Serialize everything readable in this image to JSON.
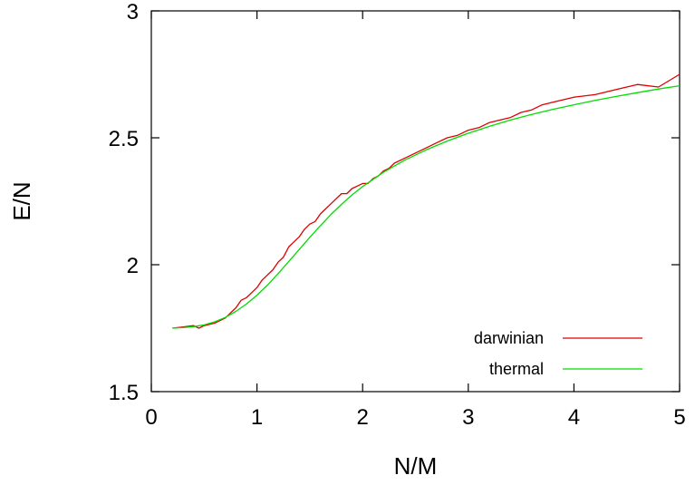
{
  "chart_data": {
    "type": "line",
    "title": "",
    "xlabel": "N/M",
    "ylabel": "E/N",
    "xlim": [
      0,
      5
    ],
    "ylim": [
      1.5,
      3
    ],
    "xticks": [
      0,
      1,
      2,
      3,
      4,
      5
    ],
    "xtick_labels": [
      "0",
      "1",
      "2",
      "3",
      "4",
      "5"
    ],
    "yticks": [
      1.5,
      2,
      2.5,
      3
    ],
    "ytick_labels": [
      "1.5",
      "2",
      "2.5",
      "3"
    ],
    "grid": false,
    "legend_position": "bottom-right",
    "series": [
      {
        "name": "darwinian",
        "color": "#dd0000",
        "x": [
          0.2,
          0.3,
          0.4,
          0.45,
          0.5,
          0.6,
          0.7,
          0.75,
          0.8,
          0.85,
          0.9,
          0.95,
          1.0,
          1.05,
          1.1,
          1.15,
          1.2,
          1.25,
          1.3,
          1.35,
          1.4,
          1.45,
          1.5,
          1.55,
          1.6,
          1.65,
          1.7,
          1.75,
          1.8,
          1.85,
          1.9,
          1.95,
          2.0,
          2.05,
          2.1,
          2.15,
          2.2,
          2.25,
          2.3,
          2.4,
          2.5,
          2.6,
          2.7,
          2.8,
          2.9,
          3.0,
          3.1,
          3.2,
          3.3,
          3.4,
          3.5,
          3.6,
          3.7,
          3.8,
          3.9,
          4.0,
          4.2,
          4.4,
          4.6,
          4.8,
          5.0
        ],
        "y": [
          1.75,
          1.755,
          1.76,
          1.75,
          1.76,
          1.77,
          1.79,
          1.81,
          1.83,
          1.86,
          1.87,
          1.89,
          1.91,
          1.94,
          1.96,
          1.98,
          2.01,
          2.03,
          2.07,
          2.09,
          2.11,
          2.14,
          2.16,
          2.17,
          2.2,
          2.22,
          2.24,
          2.26,
          2.28,
          2.28,
          2.3,
          2.31,
          2.32,
          2.32,
          2.34,
          2.35,
          2.37,
          2.38,
          2.4,
          2.42,
          2.44,
          2.46,
          2.48,
          2.5,
          2.51,
          2.53,
          2.54,
          2.56,
          2.57,
          2.58,
          2.6,
          2.61,
          2.63,
          2.64,
          2.65,
          2.66,
          2.67,
          2.69,
          2.71,
          2.7,
          2.75
        ]
      },
      {
        "name": "thermal",
        "color": "#00dd00",
        "x": [
          0.2,
          0.3,
          0.4,
          0.5,
          0.6,
          0.7,
          0.8,
          0.9,
          1.0,
          1.1,
          1.2,
          1.3,
          1.4,
          1.5,
          1.6,
          1.7,
          1.8,
          1.9,
          2.0,
          2.2,
          2.4,
          2.6,
          2.8,
          3.0,
          3.2,
          3.4,
          3.6,
          3.8,
          4.0,
          4.2,
          4.4,
          4.6,
          4.8,
          5.0
        ],
        "y": [
          1.75,
          1.752,
          1.756,
          1.763,
          1.775,
          1.792,
          1.816,
          1.845,
          1.88,
          1.92,
          1.965,
          2.012,
          2.06,
          2.108,
          2.154,
          2.198,
          2.238,
          2.275,
          2.308,
          2.365,
          2.412,
          2.452,
          2.487,
          2.518,
          2.545,
          2.57,
          2.592,
          2.612,
          2.63,
          2.647,
          2.663,
          2.678,
          2.692,
          2.705
        ]
      }
    ]
  }
}
